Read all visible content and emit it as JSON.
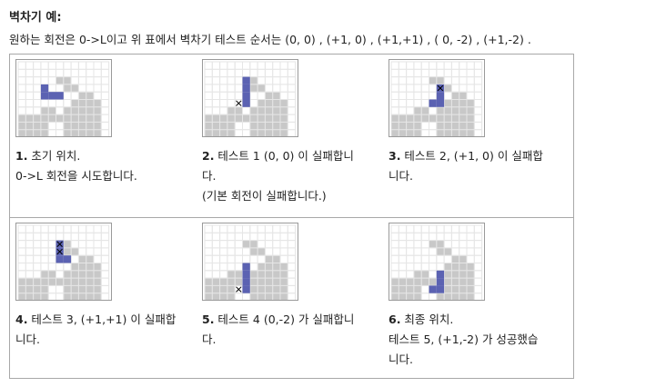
{
  "header": {
    "title": "벽차기 예:",
    "description": "원하는 회전은 0->L이고 위 표에서 벽차기 테스트 순서는 (0,  0) , (+1,  0) , (+1,+1) , ( 0,  -2) , (+1,-2) ."
  },
  "colors": {
    "wall": "#c8c8c8",
    "piece": "#5b62b2",
    "grid": "#e6e6e6",
    "mark": "#000000"
  },
  "steps": [
    {
      "num": "1.",
      "lines": [
        " 초기 위치.",
        "0->L 회전을 시도합니다."
      ]
    },
    {
      "num": "2.",
      "lines": [
        " 테스트 1 (0,  0) 이 실패합니",
        "다.",
        "(기본 회전이 실패합니다.)"
      ]
    },
    {
      "num": "3.",
      "lines": [
        " 테스트 2, (+1,  0) 이 실패합",
        "니다."
      ]
    },
    {
      "num": "4.",
      "lines": [
        " 테스트 3, (+1,+1) 이 실패합",
        "니다."
      ]
    },
    {
      "num": "5.",
      "lines": [
        " 테스트 4 (0,-2) 가 실패합니",
        "다."
      ]
    },
    {
      "num": "6.",
      "lines": [
        " 최종 위치.",
        "테스트 5, (+1,-2) 가 성공했습",
        "니다."
      ]
    }
  ]
}
